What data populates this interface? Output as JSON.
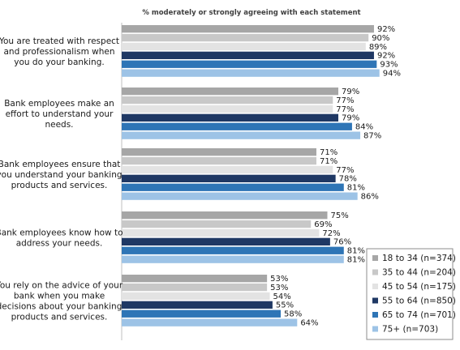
{
  "chart_data": {
    "type": "bar",
    "orientation": "horizontal",
    "title": "% moderately or strongly agreeing with each statement",
    "categories": [
      "You are treated with respect and professionalism when you do your banking.",
      "Bank employees make an effort to understand your needs.",
      "Bank employees ensure that you understand your banking products and services.",
      "Bank employees know how to address your needs.",
      "You rely on the advice of your bank when you make decisions about your banking products and services."
    ],
    "category_lines": [
      [
        "You are treated with respect",
        "and professionalism when",
        "you do your banking."
      ],
      [
        "Bank employees make an",
        "effort to understand your",
        "needs."
      ],
      [
        "Bank employees ensure that",
        "you understand your banking",
        "products and services."
      ],
      [
        "Bank employees know how to",
        "address your needs."
      ],
      [
        "You rely on the advice of your",
        "bank when you make",
        "decisions about your banking",
        "products and services."
      ]
    ],
    "series": [
      {
        "name": "18 to 34 (n=374)",
        "color": "#a6a6a6",
        "values": [
          92,
          79,
          71,
          75,
          53
        ]
      },
      {
        "name": "35 to 44 (n=204)",
        "color": "#c8c8c8",
        "values": [
          90,
          77,
          71,
          69,
          53
        ]
      },
      {
        "name": "45 to 54 (n=175)",
        "color": "#e3e3e3",
        "values": [
          89,
          77,
          77,
          72,
          54
        ]
      },
      {
        "name": "55 to 64 (n=850)",
        "color": "#1f3864",
        "values": [
          92,
          79,
          78,
          76,
          55
        ]
      },
      {
        "name": "65 to 74 (n=701)",
        "color": "#2e75b6",
        "values": [
          93,
          84,
          81,
          81,
          58
        ]
      },
      {
        "name": "75+ (n=703)",
        "color": "#9dc3e6",
        "values": [
          94,
          87,
          86,
          81,
          64
        ]
      }
    ],
    "value_suffix": "%",
    "xlim": [
      0,
      100
    ],
    "grid": false,
    "legend_position": "bottom-right"
  }
}
